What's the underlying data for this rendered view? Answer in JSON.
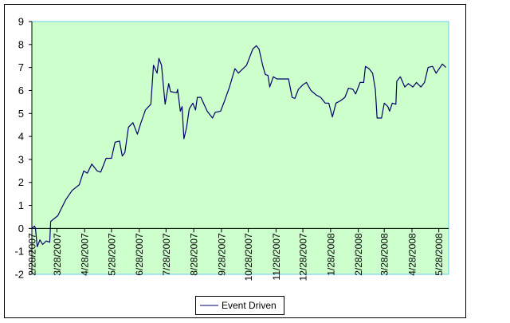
{
  "chart_data": {
    "type": "line",
    "title": "",
    "xlabel": "",
    "ylabel": "",
    "x_unit": "days since 2/28/2007",
    "xlim": [
      0,
      466
    ],
    "ylim": [
      -2,
      9
    ],
    "y_ticks": [
      -2,
      -1,
      0,
      1,
      2,
      3,
      4,
      5,
      6,
      7,
      8,
      9
    ],
    "x_ticks": [
      {
        "day": 0,
        "label": "2/28/2007"
      },
      {
        "day": 28,
        "label": "3/28/2007"
      },
      {
        "day": 59,
        "label": "4/28/2007"
      },
      {
        "day": 89,
        "label": "5/28/2007"
      },
      {
        "day": 120,
        "label": "6/28/2007"
      },
      {
        "day": 150,
        "label": "7/28/2007"
      },
      {
        "day": 181,
        "label": "8/28/2007"
      },
      {
        "day": 212,
        "label": "9/28/2007"
      },
      {
        "day": 242,
        "label": "10/28/2007"
      },
      {
        "day": 273,
        "label": "11/28/2007"
      },
      {
        "day": 303,
        "label": "12/28/2007"
      },
      {
        "day": 334,
        "label": "1/28/2008"
      },
      {
        "day": 365,
        "label": "2/28/2008"
      },
      {
        "day": 394,
        "label": "3/28/2008"
      },
      {
        "day": 425,
        "label": "4/28/2008"
      },
      {
        "day": 455,
        "label": "5/28/2008"
      }
    ],
    "grid": false,
    "legend": {
      "placement": "bottom-center",
      "entries": [
        "Event Driven"
      ]
    },
    "colors": {
      "plot_bg": "#ccffcc",
      "plot_border": "#66ccee",
      "line": "#000066"
    },
    "series": [
      {
        "name": "Event Driven",
        "x": [
          0,
          3,
          4,
          6,
          9,
          12,
          16,
          20,
          21,
          29,
          38,
          45,
          53,
          58,
          62,
          67,
          73,
          77,
          83,
          89,
          93,
          98,
          101,
          104,
          108,
          113,
          118,
          122,
          127,
          133,
          136,
          140,
          142,
          145,
          149,
          153,
          155,
          162,
          163,
          166,
          168,
          170,
          173,
          176,
          180,
          183,
          185,
          189,
          196,
          202,
          205,
          211,
          215,
          221,
          227,
          231,
          232,
          240,
          247,
          251,
          254,
          258,
          261,
          264,
          266,
          270,
          274,
          282,
          287,
          291,
          294,
          298,
          303,
          307,
          312,
          318,
          323,
          328,
          332,
          336,
          340,
          345,
          350,
          354,
          359,
          362,
          367,
          371,
          373,
          377,
          381,
          384,
          386,
          391,
          394,
          398,
          400,
          403,
          407,
          408,
          412,
          417,
          421,
          426,
          430,
          435,
          439,
          443,
          448,
          452,
          459,
          463
        ],
        "y": [
          0,
          0.1,
          0,
          -0.8,
          -0.5,
          -0.7,
          -0.55,
          -0.6,
          0.3,
          0.55,
          1.25,
          1.65,
          1.9,
          2.5,
          2.4,
          2.8,
          2.5,
          2.45,
          3.05,
          3.05,
          3.75,
          3.8,
          3.15,
          3.3,
          4.4,
          4.6,
          4.1,
          4.6,
          5.15,
          5.4,
          7.1,
          6.75,
          7.4,
          7.1,
          5.4,
          6.3,
          5.95,
          5.9,
          6.05,
          5.1,
          5.3,
          3.9,
          4.4,
          5.2,
          5.45,
          5.15,
          5.7,
          5.7,
          5.1,
          4.8,
          5.05,
          5.1,
          5.5,
          6.15,
          6.95,
          6.75,
          6.8,
          7.1,
          7.8,
          7.95,
          7.8,
          7.1,
          6.7,
          6.65,
          6.15,
          6.6,
          6.5,
          6.5,
          6.5,
          5.7,
          5.65,
          6.05,
          6.25,
          6.35,
          6.0,
          5.8,
          5.7,
          5.45,
          5.45,
          4.85,
          5.45,
          5.55,
          5.7,
          6.1,
          6.05,
          5.85,
          6.35,
          6.35,
          7.05,
          6.95,
          6.75,
          6.05,
          4.8,
          4.8,
          5.45,
          5.3,
          5.1,
          5.45,
          5.4,
          6.4,
          6.6,
          6.15,
          6.3,
          6.15,
          6.35,
          6.15,
          6.35,
          7.0,
          7.05,
          6.75,
          7.15,
          7.0
        ]
      }
    ]
  }
}
